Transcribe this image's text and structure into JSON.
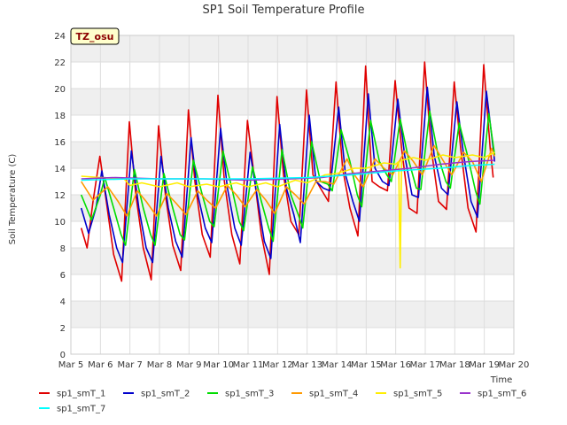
{
  "chart_data": {
    "type": "line",
    "title": "SP1 Soil Temperature Profile",
    "xlabel": "Time",
    "ylabel": "Soil Temperature (C)",
    "station_tag": "TZ_osu",
    "ylim": [
      0,
      24
    ],
    "yticks": [
      0,
      2,
      4,
      6,
      8,
      10,
      12,
      14,
      16,
      18,
      20,
      22,
      24
    ],
    "xlim": [
      5,
      20
    ],
    "xticks": [
      {
        "v": 5,
        "label": "Mar 5"
      },
      {
        "v": 6,
        "label": "Mar 6"
      },
      {
        "v": 7,
        "label": "Mar 7"
      },
      {
        "v": 8,
        "label": "Mar 8"
      },
      {
        "v": 9,
        "label": "Mar 9"
      },
      {
        "v": 10,
        "label": "Mar 10"
      },
      {
        "v": 11,
        "label": "Mar 11"
      },
      {
        "v": 12,
        "label": "Mar 12"
      },
      {
        "v": 13,
        "label": "Mar 13"
      },
      {
        "v": 14,
        "label": "Mar 14"
      },
      {
        "v": 15,
        "label": "Mar 15"
      },
      {
        "v": 16,
        "label": "Mar 16"
      },
      {
        "v": 17,
        "label": "Mar 17"
      },
      {
        "v": 18,
        "label": "Mar 18"
      },
      {
        "v": 19,
        "label": "Mar 19"
      },
      {
        "v": 20,
        "label": "Mar 20"
      }
    ],
    "grid": true,
    "legend_position": "bottom",
    "series": [
      {
        "name": "sp1_smT_1",
        "color": "#e00000",
        "points": [
          [
            5.35,
            9.5
          ],
          [
            5.55,
            8.0
          ],
          [
            5.75,
            11.5
          ],
          [
            5.98,
            14.9
          ],
          [
            6.2,
            11.5
          ],
          [
            6.45,
            7.5
          ],
          [
            6.72,
            5.5
          ],
          [
            6.98,
            17.5
          ],
          [
            7.2,
            12.0
          ],
          [
            7.45,
            8.0
          ],
          [
            7.72,
            5.6
          ],
          [
            7.97,
            17.2
          ],
          [
            8.2,
            12.0
          ],
          [
            8.45,
            8.2
          ],
          [
            8.72,
            6.3
          ],
          [
            8.98,
            18.4
          ],
          [
            9.2,
            13.0
          ],
          [
            9.45,
            9.0
          ],
          [
            9.72,
            7.3
          ],
          [
            9.98,
            19.5
          ],
          [
            10.2,
            13.0
          ],
          [
            10.45,
            9.0
          ],
          [
            10.72,
            6.8
          ],
          [
            10.98,
            17.6
          ],
          [
            11.2,
            13.5
          ],
          [
            11.45,
            9.0
          ],
          [
            11.72,
            6.0
          ],
          [
            11.98,
            19.4
          ],
          [
            12.2,
            13.5
          ],
          [
            12.45,
            10.0
          ],
          [
            12.72,
            9.0
          ],
          [
            12.98,
            19.9
          ],
          [
            13.2,
            13.5
          ],
          [
            13.45,
            12.5
          ],
          [
            13.72,
            11.5
          ],
          [
            13.98,
            20.5
          ],
          [
            14.2,
            14.0
          ],
          [
            14.45,
            11.0
          ],
          [
            14.72,
            8.9
          ],
          [
            14.98,
            21.7
          ],
          [
            15.2,
            13.0
          ],
          [
            15.45,
            12.6
          ],
          [
            15.72,
            12.3
          ],
          [
            15.98,
            20.6
          ],
          [
            16.2,
            15.5
          ],
          [
            16.45,
            11.0
          ],
          [
            16.72,
            10.6
          ],
          [
            16.98,
            22.0
          ],
          [
            17.2,
            15.5
          ],
          [
            17.45,
            11.5
          ],
          [
            17.72,
            10.9
          ],
          [
            17.98,
            20.5
          ],
          [
            18.2,
            15.5
          ],
          [
            18.45,
            11.0
          ],
          [
            18.72,
            9.2
          ],
          [
            18.98,
            21.8
          ],
          [
            19.2,
            15.5
          ],
          [
            19.3,
            13.3
          ]
        ]
      },
      {
        "name": "sp1_smT_2",
        "color": "#0000cc",
        "points": [
          [
            5.35,
            11.0
          ],
          [
            5.6,
            9.1
          ],
          [
            5.85,
            11.0
          ],
          [
            6.05,
            13.8
          ],
          [
            6.3,
            10.5
          ],
          [
            6.55,
            8.0
          ],
          [
            6.75,
            6.9
          ],
          [
            7.05,
            15.3
          ],
          [
            7.3,
            11.0
          ],
          [
            7.55,
            8.0
          ],
          [
            7.77,
            6.9
          ],
          [
            8.05,
            14.9
          ],
          [
            8.3,
            11.0
          ],
          [
            8.55,
            8.5
          ],
          [
            8.77,
            7.3
          ],
          [
            9.07,
            16.3
          ],
          [
            9.3,
            12.0
          ],
          [
            9.55,
            9.5
          ],
          [
            9.77,
            8.4
          ],
          [
            10.07,
            17.0
          ],
          [
            10.3,
            12.5
          ],
          [
            10.55,
            9.5
          ],
          [
            10.77,
            8.2
          ],
          [
            11.07,
            15.2
          ],
          [
            11.3,
            12.0
          ],
          [
            11.55,
            8.5
          ],
          [
            11.77,
            7.2
          ],
          [
            12.07,
            17.3
          ],
          [
            12.3,
            12.5
          ],
          [
            12.55,
            10.5
          ],
          [
            12.77,
            8.4
          ],
          [
            13.07,
            18.0
          ],
          [
            13.3,
            13.0
          ],
          [
            13.55,
            12.5
          ],
          [
            13.77,
            12.3
          ],
          [
            14.07,
            18.6
          ],
          [
            14.3,
            13.5
          ],
          [
            14.55,
            11.5
          ],
          [
            14.77,
            10.0
          ],
          [
            15.07,
            19.6
          ],
          [
            15.3,
            14.0
          ],
          [
            15.55,
            13.0
          ],
          [
            15.77,
            12.7
          ],
          [
            16.07,
            19.2
          ],
          [
            16.3,
            15.0
          ],
          [
            16.55,
            12.0
          ],
          [
            16.77,
            11.8
          ],
          [
            17.07,
            20.1
          ],
          [
            17.3,
            15.0
          ],
          [
            17.55,
            12.5
          ],
          [
            17.77,
            12.0
          ],
          [
            18.07,
            19.0
          ],
          [
            18.3,
            15.0
          ],
          [
            18.55,
            11.5
          ],
          [
            18.77,
            10.3
          ],
          [
            19.07,
            19.8
          ],
          [
            19.3,
            15.5
          ],
          [
            19.35,
            14.5
          ]
        ]
      },
      {
        "name": "sp1_smT_3",
        "color": "#00dd00",
        "points": [
          [
            5.35,
            12.0
          ],
          [
            5.7,
            10.1
          ],
          [
            6.0,
            12.0
          ],
          [
            6.15,
            13.3
          ],
          [
            6.45,
            11.0
          ],
          [
            6.7,
            9.0
          ],
          [
            6.85,
            8.2
          ],
          [
            7.15,
            13.9
          ],
          [
            7.45,
            11.0
          ],
          [
            7.7,
            9.0
          ],
          [
            7.85,
            8.2
          ],
          [
            8.15,
            13.6
          ],
          [
            8.45,
            11.0
          ],
          [
            8.7,
            9.0
          ],
          [
            8.85,
            8.6
          ],
          [
            9.15,
            14.6
          ],
          [
            9.45,
            12.0
          ],
          [
            9.7,
            10.0
          ],
          [
            9.85,
            9.6
          ],
          [
            10.15,
            15.3
          ],
          [
            10.45,
            12.5
          ],
          [
            10.7,
            10.0
          ],
          [
            10.85,
            9.3
          ],
          [
            11.15,
            14.1
          ],
          [
            11.45,
            11.5
          ],
          [
            11.7,
            9.5
          ],
          [
            11.85,
            8.5
          ],
          [
            12.15,
            15.4
          ],
          [
            12.45,
            12.0
          ],
          [
            12.7,
            10.5
          ],
          [
            12.85,
            9.5
          ],
          [
            13.15,
            16.0
          ],
          [
            13.45,
            13.0
          ],
          [
            13.7,
            12.8
          ],
          [
            13.85,
            12.3
          ],
          [
            14.15,
            16.9
          ],
          [
            14.45,
            14.5
          ],
          [
            14.7,
            12.0
          ],
          [
            14.85,
            11.1
          ],
          [
            15.15,
            17.6
          ],
          [
            15.45,
            14.5
          ],
          [
            15.7,
            13.5
          ],
          [
            15.85,
            13.0
          ],
          [
            16.15,
            17.7
          ],
          [
            16.45,
            14.5
          ],
          [
            16.7,
            12.5
          ],
          [
            16.85,
            12.4
          ],
          [
            17.15,
            18.3
          ],
          [
            17.45,
            14.8
          ],
          [
            17.7,
            13.0
          ],
          [
            17.85,
            12.5
          ],
          [
            18.15,
            17.4
          ],
          [
            18.45,
            14.8
          ],
          [
            18.7,
            12.3
          ],
          [
            18.85,
            11.3
          ],
          [
            19.15,
            18.1
          ],
          [
            19.35,
            15.0
          ]
        ]
      },
      {
        "name": "sp1_smT_4",
        "color": "#ff9900",
        "points": [
          [
            5.35,
            13.0
          ],
          [
            5.75,
            11.6
          ],
          [
            6.25,
            12.6
          ],
          [
            6.6,
            11.5
          ],
          [
            6.9,
            10.4
          ],
          [
            7.25,
            12.3
          ],
          [
            7.55,
            11.5
          ],
          [
            7.9,
            10.4
          ],
          [
            8.25,
            12.1
          ],
          [
            8.55,
            11.4
          ],
          [
            8.9,
            10.5
          ],
          [
            9.3,
            12.3
          ],
          [
            9.6,
            11.6
          ],
          [
            9.9,
            11.0
          ],
          [
            10.3,
            12.7
          ],
          [
            10.6,
            12.0
          ],
          [
            10.9,
            11.1
          ],
          [
            11.3,
            12.4
          ],
          [
            11.6,
            11.6
          ],
          [
            11.9,
            10.6
          ],
          [
            12.3,
            12.6
          ],
          [
            12.6,
            12.0
          ],
          [
            12.9,
            11.3
          ],
          [
            13.3,
            13.0
          ],
          [
            13.6,
            13.0
          ],
          [
            13.9,
            12.8
          ],
          [
            14.35,
            14.7
          ],
          [
            14.6,
            13.5
          ],
          [
            14.9,
            12.6
          ],
          [
            15.3,
            14.7
          ],
          [
            15.6,
            14.0
          ],
          [
            15.9,
            13.5
          ],
          [
            16.3,
            15.3
          ],
          [
            16.6,
            14.5
          ],
          [
            16.9,
            13.5
          ],
          [
            17.3,
            15.7
          ],
          [
            17.6,
            14.6
          ],
          [
            17.9,
            13.5
          ],
          [
            18.3,
            15.2
          ],
          [
            18.6,
            14.5
          ],
          [
            18.9,
            13.0
          ],
          [
            19.25,
            15.5
          ],
          [
            19.35,
            14.9
          ]
        ]
      },
      {
        "name": "sp1_smT_5",
        "color": "#ffee00",
        "points": [
          [
            5.35,
            13.4
          ],
          [
            6.0,
            13.3
          ],
          [
            6.8,
            13.2
          ],
          [
            7.0,
            12.7
          ],
          [
            7.4,
            12.9
          ],
          [
            8.0,
            12.6
          ],
          [
            8.6,
            12.9
          ],
          [
            9.0,
            12.6
          ],
          [
            9.6,
            12.8
          ],
          [
            10.0,
            12.6
          ],
          [
            10.6,
            12.9
          ],
          [
            11.0,
            12.6
          ],
          [
            11.6,
            12.9
          ],
          [
            12.0,
            12.6
          ],
          [
            12.6,
            13.1
          ],
          [
            13.0,
            12.9
          ],
          [
            13.6,
            13.5
          ],
          [
            14.0,
            13.6
          ],
          [
            14.6,
            14.0
          ],
          [
            15.0,
            14.0
          ],
          [
            15.6,
            14.4
          ],
          [
            16.0,
            14.3
          ],
          [
            16.1,
            14.5
          ],
          [
            16.15,
            6.5
          ],
          [
            16.2,
            14.6
          ],
          [
            16.6,
            14.8
          ],
          [
            17.0,
            14.6
          ],
          [
            17.6,
            15.0
          ],
          [
            18.0,
            14.8
          ],
          [
            18.6,
            15.0
          ],
          [
            19.0,
            14.8
          ],
          [
            19.35,
            15.2
          ]
        ]
      },
      {
        "name": "sp1_smT_6",
        "color": "#9933cc",
        "points": [
          [
            5.35,
            13.2
          ],
          [
            6.5,
            13.3
          ],
          [
            8.0,
            13.2
          ],
          [
            9.5,
            13.2
          ],
          [
            11.0,
            13.1
          ],
          [
            12.5,
            13.2
          ],
          [
            13.5,
            13.3
          ],
          [
            14.5,
            13.6
          ],
          [
            15.5,
            13.8
          ],
          [
            16.5,
            14.0
          ],
          [
            17.5,
            14.3
          ],
          [
            18.5,
            14.5
          ],
          [
            19.35,
            14.6
          ]
        ]
      },
      {
        "name": "sp1_smT_7",
        "color": "#00ffff",
        "points": [
          [
            5.35,
            13.1
          ],
          [
            7.0,
            13.2
          ],
          [
            9.0,
            13.2
          ],
          [
            11.0,
            13.2
          ],
          [
            13.0,
            13.3
          ],
          [
            14.5,
            13.5
          ],
          [
            16.0,
            13.8
          ],
          [
            17.5,
            14.0
          ],
          [
            18.5,
            14.2
          ],
          [
            19.35,
            14.3
          ]
        ]
      }
    ]
  }
}
